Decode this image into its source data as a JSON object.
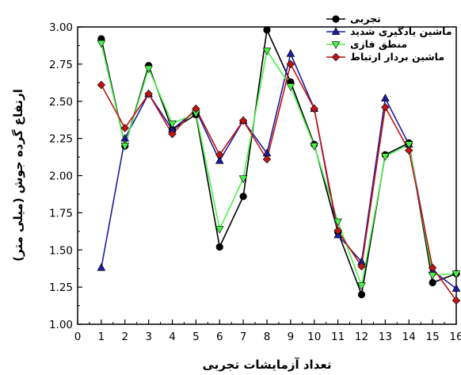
{
  "chart_data": {
    "type": "line",
    "title": "",
    "xlabel": "تعداد آزمایشات تجربی",
    "ylabel": "ارتفاع گرده جوش (میلی متر)",
    "xlim": [
      0,
      16
    ],
    "ylim": [
      1.0,
      3.0
    ],
    "x_ticks": [
      "0",
      "1",
      "2",
      "3",
      "4",
      "5",
      "6",
      "7",
      "8",
      "9",
      "10",
      "11",
      "12",
      "13",
      "14",
      "15",
      "16"
    ],
    "y_ticks": [
      "1.00",
      "1.25",
      "1.50",
      "1.75",
      "2.00",
      "2.25",
      "2.50",
      "2.75",
      "3.00"
    ],
    "grid": false,
    "legend_position": "top-right",
    "x": [
      1,
      2,
      3,
      4,
      5,
      6,
      7,
      8,
      9,
      10,
      11,
      12,
      13,
      14,
      15,
      16
    ],
    "series": [
      {
        "name": "تجربی",
        "color": "#000000",
        "marker": "circle",
        "values": [
          2.92,
          2.2,
          2.74,
          2.31,
          2.41,
          1.52,
          1.86,
          2.98,
          2.63,
          2.21,
          1.62,
          1.2,
          2.14,
          2.22,
          1.28,
          1.34
        ]
      },
      {
        "name": "ماشین یادگیری شدید",
        "color": "#1c1c9c",
        "marker": "triangle-up",
        "values": [
          1.38,
          2.25,
          2.55,
          2.31,
          2.44,
          2.1,
          2.37,
          2.15,
          2.82,
          2.45,
          1.6,
          1.42,
          2.52,
          2.21,
          1.36,
          1.24
        ]
      },
      {
        "name": "منطق فازی",
        "color": "#4cf04c",
        "marker": "triangle-down",
        "values": [
          2.89,
          2.2,
          2.72,
          2.35,
          2.42,
          1.64,
          1.98,
          2.84,
          2.6,
          2.2,
          1.69,
          1.26,
          2.13,
          2.21,
          1.33,
          1.34
        ]
      },
      {
        "name": "ماشین بردار ارتباط",
        "color": "#c01414",
        "marker": "diamond",
        "values": [
          2.61,
          2.32,
          2.55,
          2.28,
          2.45,
          2.14,
          2.37,
          2.11,
          2.75,
          2.45,
          1.63,
          1.39,
          2.46,
          2.17,
          1.38,
          1.16
        ]
      }
    ]
  }
}
